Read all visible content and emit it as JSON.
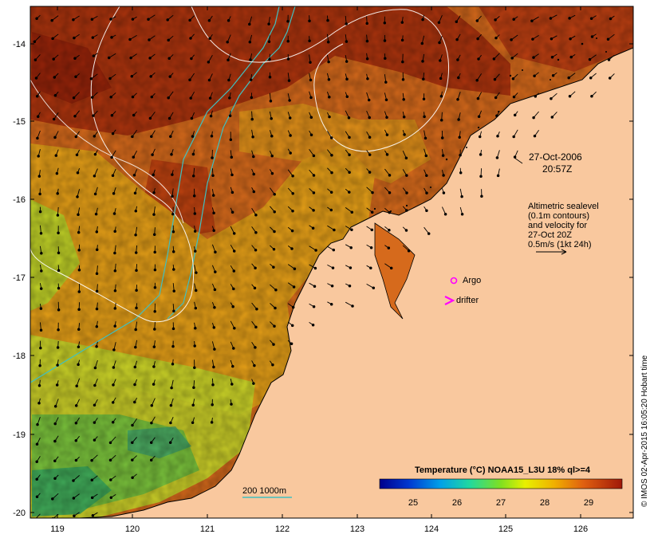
{
  "date_label": "27-Oct-2006",
  "time_label": "20:57Z",
  "legend_text": {
    "line1": "Altimetric sealevel",
    "line2": "(0.1m contours)",
    "line3": "and velocity for",
    "line4": "27-Oct 20Z",
    "line5": "0.5m/s (1kt 24h)"
  },
  "markers": {
    "argo_label": "Argo",
    "drifter_label": "drifter",
    "argo_color": "#ff00ff",
    "drifter_color": "#ff00ff"
  },
  "isobath_label": "200  1000m",
  "isobath_color": "#40c0c0",
  "colorbar": {
    "title": "Temperature (°C) NOAA15_L3U 18% ql>=4",
    "ticks": [
      "25",
      "26",
      "27",
      "28",
      "29"
    ]
  },
  "credit": "© IMOS 02-Apr-2015 16:05:20 Hobart time",
  "colors": {
    "land": "#f9c89e",
    "warm_sea": "#d66a1c",
    "hot_sea": "#a42a0c",
    "mid_sea": "#e8a818",
    "cool_sea": "#c8d82a",
    "cold_sea": "#4ab84a",
    "sealevel_contour": "#ffffff"
  },
  "axes": {
    "x_ticks": [
      "119",
      "120",
      "121",
      "122",
      "123",
      "124",
      "125",
      "126"
    ],
    "y_ticks": [
      "-14",
      "-15",
      "-16",
      "-17",
      "-18",
      "-19",
      "-20"
    ]
  }
}
